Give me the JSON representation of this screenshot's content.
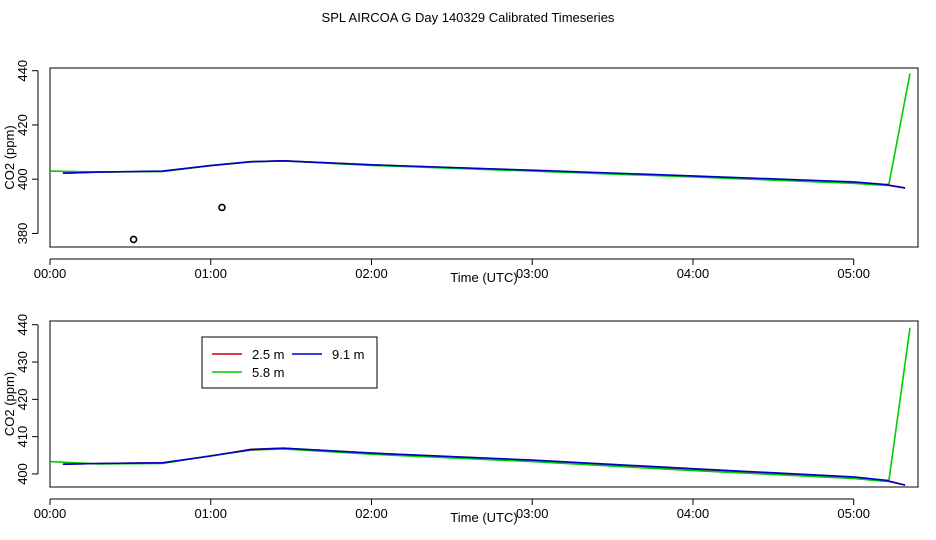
{
  "figure_title": "SPL AIRCOA G  Day 140329  Calibrated Timeseries",
  "colors": {
    "series_2_5m": "#cc0000",
    "series_5_8m": "#00cc00",
    "series_9_1m": "#0000cc",
    "outlier_points": "#000000",
    "frame": "#000000"
  },
  "chart_data": [
    {
      "type": "line",
      "title": "",
      "xlabel": "Time (UTC)",
      "ylabel": "CO2 (ppm)",
      "x_unit": "hours (UTC)",
      "xlim": [
        0.0,
        5.4
      ],
      "ylim": [
        375,
        441
      ],
      "x_ticks": [
        {
          "value": 0,
          "label": "00:00"
        },
        {
          "value": 1,
          "label": "01:00"
        },
        {
          "value": 2,
          "label": "02:00"
        },
        {
          "value": 3,
          "label": "03:00"
        },
        {
          "value": 4,
          "label": "04:00"
        },
        {
          "value": 5,
          "label": "05:00"
        }
      ],
      "y_ticks": [
        {
          "value": 380,
          "label": "380"
        },
        {
          "value": 400,
          "label": "400"
        },
        {
          "value": 420,
          "label": "420"
        },
        {
          "value": 440,
          "label": "440"
        }
      ],
      "grid": false,
      "legend": null,
      "series": [
        {
          "color_key": "series_2_5m",
          "x": [
            0.08,
            0.3,
            0.7,
            1.0,
            1.25,
            1.45,
            2.0,
            3.0,
            4.0,
            5.0,
            5.2,
            5.32
          ],
          "y": [
            402.2,
            402.6,
            402.9,
            405.0,
            406.5,
            406.8,
            405.3,
            403.2,
            401.0,
            398.8,
            397.9,
            396.8
          ]
        },
        {
          "color_key": "series_5_8m",
          "x": [
            0.0,
            0.3,
            0.7,
            1.0,
            1.25,
            1.45,
            2.0,
            3.0,
            4.0,
            5.0,
            5.2,
            5.22,
            5.35
          ],
          "y": [
            403.0,
            402.6,
            402.8,
            405.0,
            406.4,
            406.7,
            405.1,
            403.0,
            400.8,
            398.5,
            397.7,
            398.5,
            439.0
          ]
        },
        {
          "color_key": "series_9_1m",
          "x": [
            0.08,
            0.3,
            0.7,
            1.0,
            1.25,
            1.45,
            2.0,
            3.0,
            4.0,
            5.0,
            5.2,
            5.32
          ],
          "y": [
            402.2,
            402.6,
            403.0,
            405.0,
            406.4,
            406.8,
            405.3,
            403.3,
            401.2,
            399.0,
            398.0,
            396.8
          ]
        }
      ],
      "outliers": [
        {
          "x": 0.52,
          "y": 377.8
        },
        {
          "x": 1.07,
          "y": 389.6
        }
      ]
    },
    {
      "type": "line",
      "title": "",
      "xlabel": "Time (UTC)",
      "ylabel": "CO2 (ppm)",
      "x_unit": "hours (UTC)",
      "xlim": [
        0.0,
        5.4
      ],
      "ylim": [
        396.5,
        441
      ],
      "x_ticks": [
        {
          "value": 0,
          "label": "00:00"
        },
        {
          "value": 1,
          "label": "01:00"
        },
        {
          "value": 2,
          "label": "02:00"
        },
        {
          "value": 3,
          "label": "03:00"
        },
        {
          "value": 4,
          "label": "04:00"
        },
        {
          "value": 5,
          "label": "05:00"
        }
      ],
      "y_ticks": [
        {
          "value": 400,
          "label": "400"
        },
        {
          "value": 410,
          "label": "410"
        },
        {
          "value": 420,
          "label": "420"
        },
        {
          "value": 430,
          "label": "430"
        },
        {
          "value": 440,
          "label": "440"
        }
      ],
      "grid": false,
      "legend": {
        "placement": "top-left",
        "entries": [
          {
            "label": "2.5 m",
            "color_key": "series_2_5m"
          },
          {
            "label": "9.1 m",
            "color_key": "series_9_1m"
          },
          {
            "label": "5.8 m",
            "color_key": "series_5_8m"
          }
        ]
      },
      "series": [
        {
          "name": "2.5 m",
          "color_key": "series_2_5m",
          "x": [
            0.08,
            0.3,
            0.7,
            1.0,
            1.25,
            1.45,
            2.0,
            3.0,
            4.0,
            5.0,
            5.2,
            5.32
          ],
          "y": [
            402.6,
            402.8,
            403.0,
            404.8,
            406.6,
            406.9,
            405.6,
            403.6,
            401.2,
            399.0,
            398.2,
            397.0
          ]
        },
        {
          "name": "5.8 m",
          "color_key": "series_5_8m",
          "x": [
            0.0,
            0.3,
            0.7,
            1.0,
            1.25,
            1.45,
            2.0,
            3.0,
            4.0,
            5.0,
            5.2,
            5.22,
            5.35
          ],
          "y": [
            403.3,
            402.7,
            402.8,
            404.9,
            406.4,
            406.7,
            405.3,
            403.3,
            400.9,
            398.8,
            398.0,
            398.6,
            439.2
          ]
        },
        {
          "name": "9.1 m",
          "color_key": "series_9_1m",
          "x": [
            0.08,
            0.3,
            0.7,
            1.0,
            1.25,
            1.45,
            2.0,
            3.0,
            4.0,
            5.0,
            5.2,
            5.32
          ],
          "y": [
            402.6,
            402.8,
            403.0,
            404.8,
            406.5,
            406.9,
            405.6,
            403.7,
            401.4,
            399.2,
            398.3,
            397.0
          ]
        }
      ],
      "outliers": []
    }
  ]
}
